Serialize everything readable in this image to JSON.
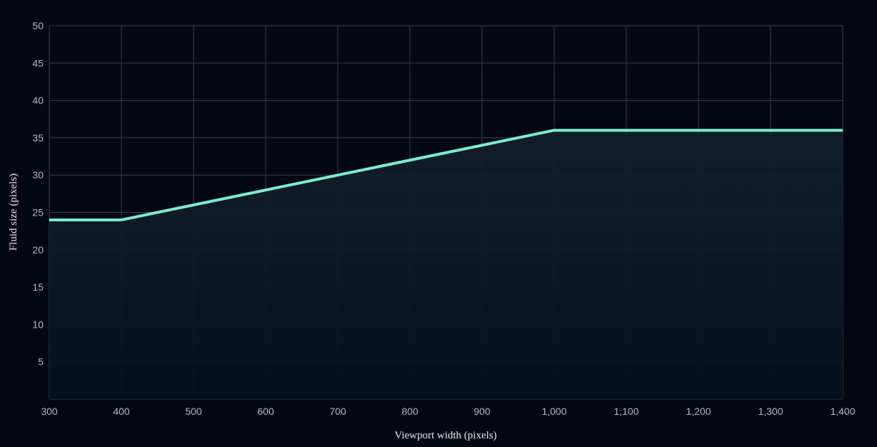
{
  "colors": {
    "background": "#030712",
    "grid": "#2d4550",
    "line": "#7deccf",
    "area_fill": "#0d1a24",
    "tick_text": "#b4b8be",
    "axis_title_text": "#e6e8ea"
  },
  "chart_data": {
    "type": "area",
    "title": "",
    "xlabel": "Viewport width (pixels)",
    "ylabel": "Fluid size (pixels)",
    "xlim": [
      300,
      1400
    ],
    "ylim": [
      0,
      50
    ],
    "x_ticks": [
      300,
      400,
      500,
      600,
      700,
      800,
      900,
      1000,
      1100,
      1200,
      1300,
      1400
    ],
    "x_tick_labels": [
      "300",
      "400",
      "500",
      "600",
      "700",
      "800",
      "900",
      "1,000",
      "1,100",
      "1,200",
      "1,300",
      "1,400"
    ],
    "y_ticks": [
      5,
      10,
      15,
      20,
      25,
      30,
      35,
      40,
      45,
      50
    ],
    "y_tick_labels": [
      "5",
      "10",
      "15",
      "20",
      "25",
      "30",
      "35",
      "40",
      "45",
      "50"
    ],
    "grid": true,
    "legend": "none",
    "series": [
      {
        "x": [
          300,
          400,
          1000,
          1400
        ],
        "y": [
          24,
          24,
          36,
          36
        ]
      }
    ]
  }
}
